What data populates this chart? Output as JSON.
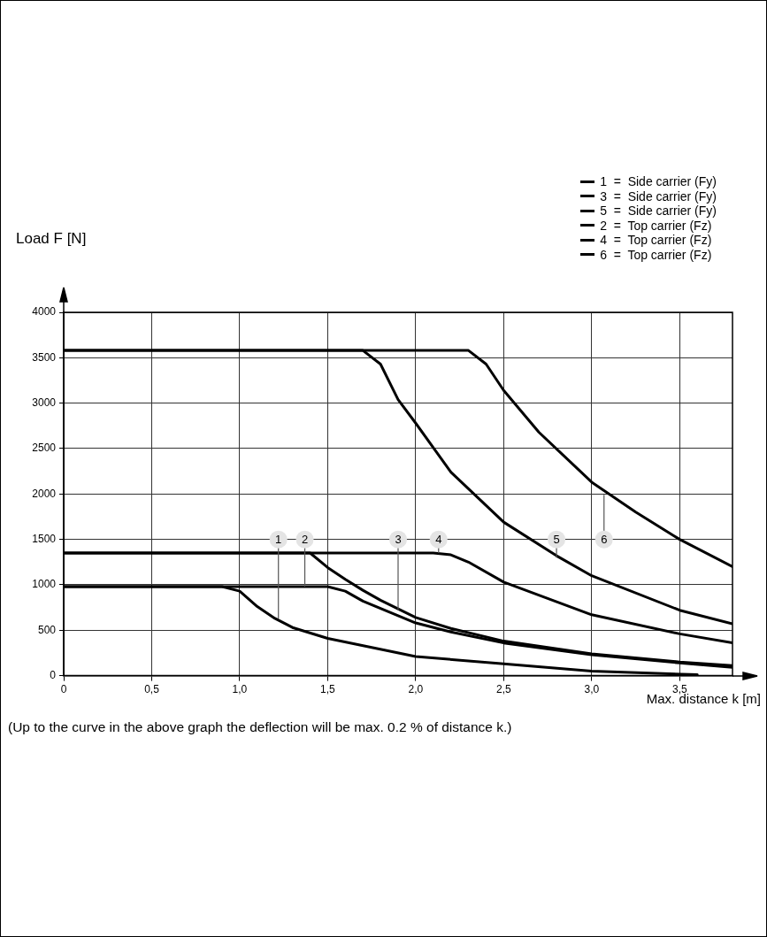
{
  "chart_data": {
    "type": "line",
    "ylabel": "Load  F [N]",
    "xlabel": "Max. distance  k [m]",
    "xlim": [
      0,
      3.8
    ],
    "ylim": [
      0,
      4000
    ],
    "xticks": [
      0,
      {
        "value": 0.5,
        "label": "0,5"
      },
      {
        "value": 1,
        "label": "1,0"
      },
      {
        "value": 1.5,
        "label": "1,5"
      },
      {
        "value": 2,
        "label": "2,0"
      },
      {
        "value": 2.5,
        "label": "2,5"
      },
      {
        "value": 3,
        "label": "3,0"
      },
      {
        "value": 3.5,
        "label": "3,5"
      }
    ],
    "yticks": [
      0,
      500,
      1000,
      1500,
      2000,
      2500,
      3000,
      3500,
      4000
    ],
    "grid": true,
    "marker": "none",
    "line_style": "solid",
    "legend": "top right",
    "series": [
      {
        "name": "1  =  Side carrier (Fy)",
        "color": "#000000",
        "x": [
          0,
          0.9,
          1.0,
          1.1,
          1.2,
          1.3,
          1.5,
          2.0,
          2.5,
          3.0,
          3.6
        ],
        "values": [
          980,
          980,
          930,
          760,
          630,
          530,
          410,
          210,
          130,
          50,
          10
        ]
      },
      {
        "name": "3  =  Side carrier (Fy)",
        "color": "#000000",
        "x": [
          0,
          1.4,
          1.5,
          1.6,
          1.7,
          1.8,
          2.0,
          2.2,
          2.5,
          3.0,
          3.5,
          3.8
        ],
        "values": [
          1350,
          1350,
          1190,
          1060,
          940,
          830,
          640,
          520,
          380,
          240,
          150,
          110
        ]
      },
      {
        "name": "5  =  Side carrier (Fy)",
        "color": "#000000",
        "x": [
          0,
          1.7,
          1.8,
          1.9,
          2.0,
          2.2,
          2.5,
          2.8,
          3.0,
          3.5,
          3.8
        ],
        "values": [
          3580,
          3580,
          3430,
          3040,
          2780,
          2240,
          1690,
          1320,
          1100,
          720,
          570
        ]
      },
      {
        "name": "2  =  Top carrier (Fz)",
        "color": "#000000",
        "x": [
          0,
          1.5,
          1.6,
          1.7,
          1.8,
          2.0,
          2.2,
          2.5,
          3.0,
          3.5,
          3.8
        ],
        "values": [
          980,
          980,
          930,
          820,
          740,
          580,
          480,
          360,
          230,
          140,
          90
        ]
      },
      {
        "name": "4  =  Top carrier (Fz)",
        "color": "#000000",
        "x": [
          0,
          2.1,
          2.2,
          2.3,
          2.5,
          3.0,
          3.5,
          3.8
        ],
        "values": [
          1350,
          1350,
          1330,
          1250,
          1030,
          670,
          460,
          360
        ]
      },
      {
        "name": "6  =  Top carrier (Fz)",
        "color": "#000000",
        "x": [
          0,
          2.3,
          2.4,
          2.5,
          2.7,
          3.0,
          3.25,
          3.5,
          3.8
        ],
        "values": [
          3580,
          3580,
          3430,
          3140,
          2680,
          2130,
          1800,
          1500,
          1200
        ]
      }
    ],
    "annotations": [
      {
        "text": "1",
        "x": 1.22,
        "y": 630
      },
      {
        "text": "2",
        "x": 1.37,
        "y": 980
      },
      {
        "text": "3",
        "x": 1.9,
        "y": 720
      },
      {
        "text": "4",
        "x": 2.13,
        "y": 1350
      },
      {
        "text": "5",
        "x": 2.8,
        "y": 1300
      },
      {
        "text": "6",
        "x": 3.07,
        "y": 1990
      },
      "(Up to the curve in the above graph the deflection will be max. 0.2 % of distance k.)"
    ]
  }
}
